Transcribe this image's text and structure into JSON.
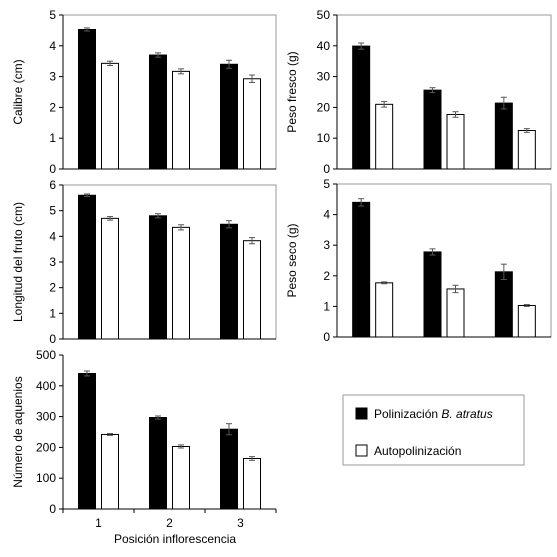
{
  "figure": {
    "xlabel": "Posición inflorescencia",
    "legend": {
      "items": [
        {
          "label_plain": "Polinización ",
          "label_italic": "B. atratus",
          "fill": "#000000"
        },
        {
          "label_plain": "Autopolinización",
          "label_italic": "",
          "fill": "#ffffff"
        }
      ]
    }
  },
  "chart_data": [
    {
      "type": "bar",
      "ylabel": "Calibre (cm)",
      "categories": [
        "1",
        "2",
        "3"
      ],
      "ylim": [
        0,
        5
      ],
      "yticks": [
        0,
        1,
        2,
        3,
        4,
        5
      ],
      "grid": false,
      "series": [
        {
          "name": "Polinización B. atratus",
          "color": "#000000",
          "values": [
            4.53,
            3.7,
            3.4
          ],
          "errors": [
            0.05,
            0.07,
            0.13
          ]
        },
        {
          "name": "Autopolinización",
          "color": "#ffffff",
          "values": [
            3.43,
            3.17,
            2.93
          ],
          "errors": [
            0.07,
            0.08,
            0.12
          ]
        }
      ]
    },
    {
      "type": "bar",
      "ylabel": "Peso fresco (g)",
      "categories": [
        "1",
        "2",
        "3"
      ],
      "ylim": [
        0,
        50
      ],
      "yticks": [
        0,
        10,
        20,
        30,
        40,
        50
      ],
      "grid": false,
      "series": [
        {
          "name": "Polinización B. atratus",
          "color": "#000000",
          "values": [
            39.9,
            25.6,
            21.4
          ],
          "errors": [
            1.0,
            0.8,
            1.9
          ]
        },
        {
          "name": "Autopolinización",
          "color": "#ffffff",
          "values": [
            21.0,
            17.7,
            12.5
          ],
          "errors": [
            0.9,
            0.9,
            0.6
          ]
        }
      ]
    },
    {
      "type": "bar",
      "ylabel": "Longitud del fruto (cm)",
      "categories": [
        "1",
        "2",
        "3"
      ],
      "ylim": [
        0,
        6
      ],
      "yticks": [
        0,
        1,
        2,
        3,
        4,
        5,
        6
      ],
      "grid": false,
      "series": [
        {
          "name": "Polinización B. atratus",
          "color": "#000000",
          "values": [
            5.6,
            4.8,
            4.47
          ],
          "errors": [
            0.05,
            0.08,
            0.14
          ]
        },
        {
          "name": "Autopolinización",
          "color": "#ffffff",
          "values": [
            4.7,
            4.35,
            3.83
          ],
          "errors": [
            0.07,
            0.1,
            0.12
          ]
        }
      ]
    },
    {
      "type": "bar",
      "ylabel": "Peso seco (g)",
      "categories": [
        "1",
        "2",
        "3"
      ],
      "ylim": [
        0,
        5
      ],
      "yticks": [
        0,
        1,
        2,
        3,
        4,
        5
      ],
      "grid": false,
      "series": [
        {
          "name": "Polinización B. atratus",
          "color": "#000000",
          "values": [
            4.4,
            2.78,
            2.13
          ],
          "errors": [
            0.12,
            0.1,
            0.25
          ]
        },
        {
          "name": "Autopolinización",
          "color": "#ffffff",
          "values": [
            1.77,
            1.57,
            1.03
          ],
          "errors": [
            0.03,
            0.12,
            0.03
          ]
        }
      ]
    },
    {
      "type": "bar",
      "ylabel": "Número de aquenios",
      "categories": [
        "1",
        "2",
        "3"
      ],
      "ylim": [
        0,
        500
      ],
      "yticks": [
        0,
        100,
        200,
        300,
        400,
        500
      ],
      "grid": false,
      "series": [
        {
          "name": "Polinización B. atratus",
          "color": "#000000",
          "values": [
            440,
            297,
            259
          ],
          "errors": [
            8,
            5,
            18
          ]
        },
        {
          "name": "Autopolinización",
          "color": "#ffffff",
          "values": [
            242,
            203,
            164
          ],
          "errors": [
            3,
            5,
            6
          ]
        }
      ]
    }
  ]
}
